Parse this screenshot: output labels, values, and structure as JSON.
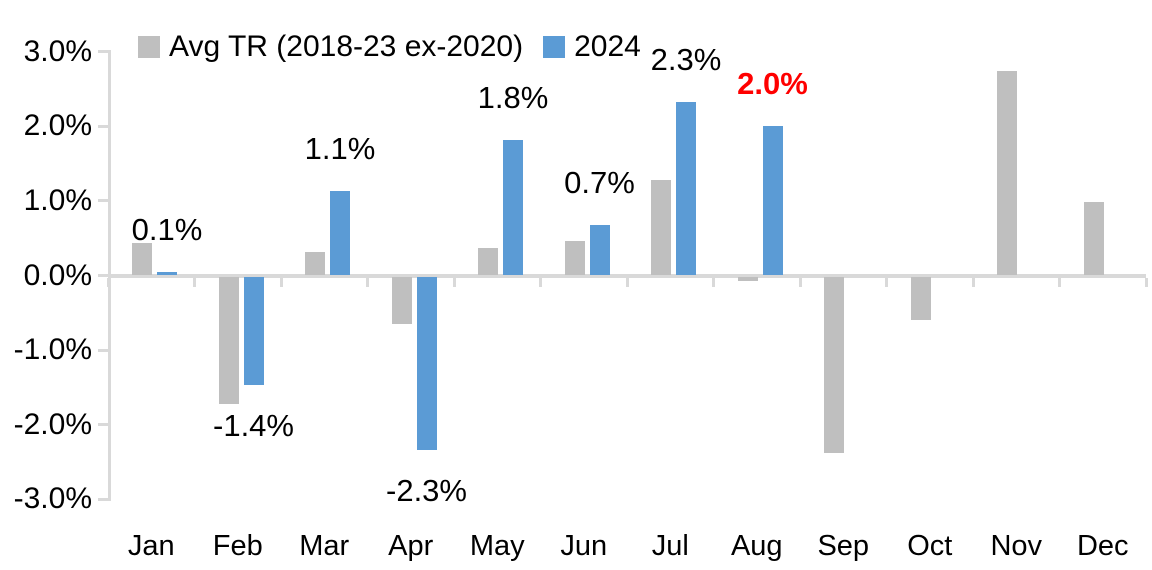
{
  "chart_data": {
    "type": "bar",
    "title": "",
    "categories": [
      "Jan",
      "Feb",
      "Mar",
      "Apr",
      "May",
      "Jun",
      "Jul",
      "Aug",
      "Sep",
      "Oct",
      "Nov",
      "Dec"
    ],
    "series": [
      {
        "name": "Avg TR (2018-23 ex-2020)",
        "color": "#bfbfbf",
        "values": [
          0.43,
          -1.71,
          0.31,
          -0.64,
          0.37,
          0.46,
          1.28,
          -0.06,
          -2.37,
          -0.58,
          2.74,
          0.98
        ]
      },
      {
        "name": "2024",
        "color": "#5b9bd5",
        "values": [
          0.05,
          -1.45,
          1.13,
          -2.33,
          1.82,
          0.68,
          2.32,
          2.01,
          null,
          null,
          null,
          null
        ],
        "data_labels": [
          {
            "text": "0.1%",
            "color": "#000000",
            "bold": false
          },
          {
            "text": "-1.4%",
            "color": "#000000",
            "bold": false
          },
          {
            "text": "1.1%",
            "color": "#000000",
            "bold": false
          },
          {
            "text": "-2.3%",
            "color": "#000000",
            "bold": false
          },
          {
            "text": "1.8%",
            "color": "#000000",
            "bold": false
          },
          {
            "text": "0.7%",
            "color": "#000000",
            "bold": false
          },
          {
            "text": "2.3%",
            "color": "#000000",
            "bold": false
          },
          {
            "text": "2.0%",
            "color": "#ff0000",
            "bold": true
          }
        ]
      }
    ],
    "ylim": [
      -3,
      3
    ],
    "y_tick_values": [
      3,
      2,
      1,
      0,
      -1,
      -2,
      -3
    ],
    "y_tick_labels": [
      "3.0%",
      "2.0%",
      "1.0%",
      "0.0%",
      "-1.0%",
      "-2.0%",
      "-3.0%"
    ],
    "grid": false,
    "legend_position": "top",
    "axis_color": "#d9d9d9",
    "background": "#ffffff",
    "highlight_note": "August 2024 label shown in red bold"
  }
}
